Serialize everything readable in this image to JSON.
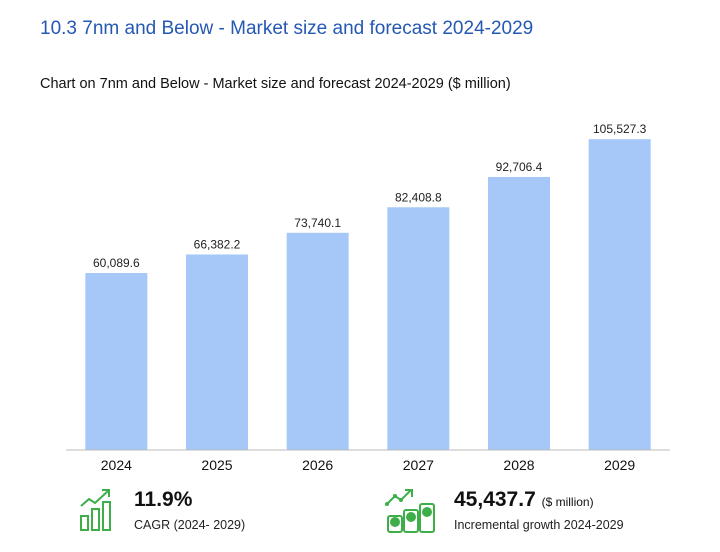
{
  "section_title": "10.3 7nm and Below - Market size and forecast 2024-2029",
  "chart_title": "Chart on 7nm and Below - Market size and forecast 2024-2029 ($ million)",
  "chart_data": {
    "type": "bar",
    "categories": [
      "2024",
      "2025",
      "2026",
      "2027",
      "2028",
      "2029"
    ],
    "values": [
      60089.6,
      66382.2,
      73740.1,
      82408.8,
      92706.4,
      105527.3
    ],
    "value_labels": [
      "60,089.6",
      "66,382.2",
      "73,740.1",
      "82,408.8",
      "92,706.4",
      "105,527.3"
    ],
    "title": "Chart on 7nm and Below - Market size and forecast 2024-2029 ($ million)",
    "xlabel": "",
    "ylabel": "",
    "ylim": [
      0,
      110000
    ],
    "grid": false,
    "bar_color": "#a6c8f8"
  },
  "kpis": {
    "cagr": {
      "value": "11.9%",
      "label": "CAGR (2024- 2029)",
      "icon": "bar-growth-icon"
    },
    "incremental": {
      "value": "45,437.7",
      "unit": "($ million)",
      "label": "Incremental growth 2024-2029",
      "icon": "money-growth-icon"
    }
  },
  "colors": {
    "title": "#2458b3",
    "bar": "#a6c8f8",
    "icon": "#3dae48"
  }
}
